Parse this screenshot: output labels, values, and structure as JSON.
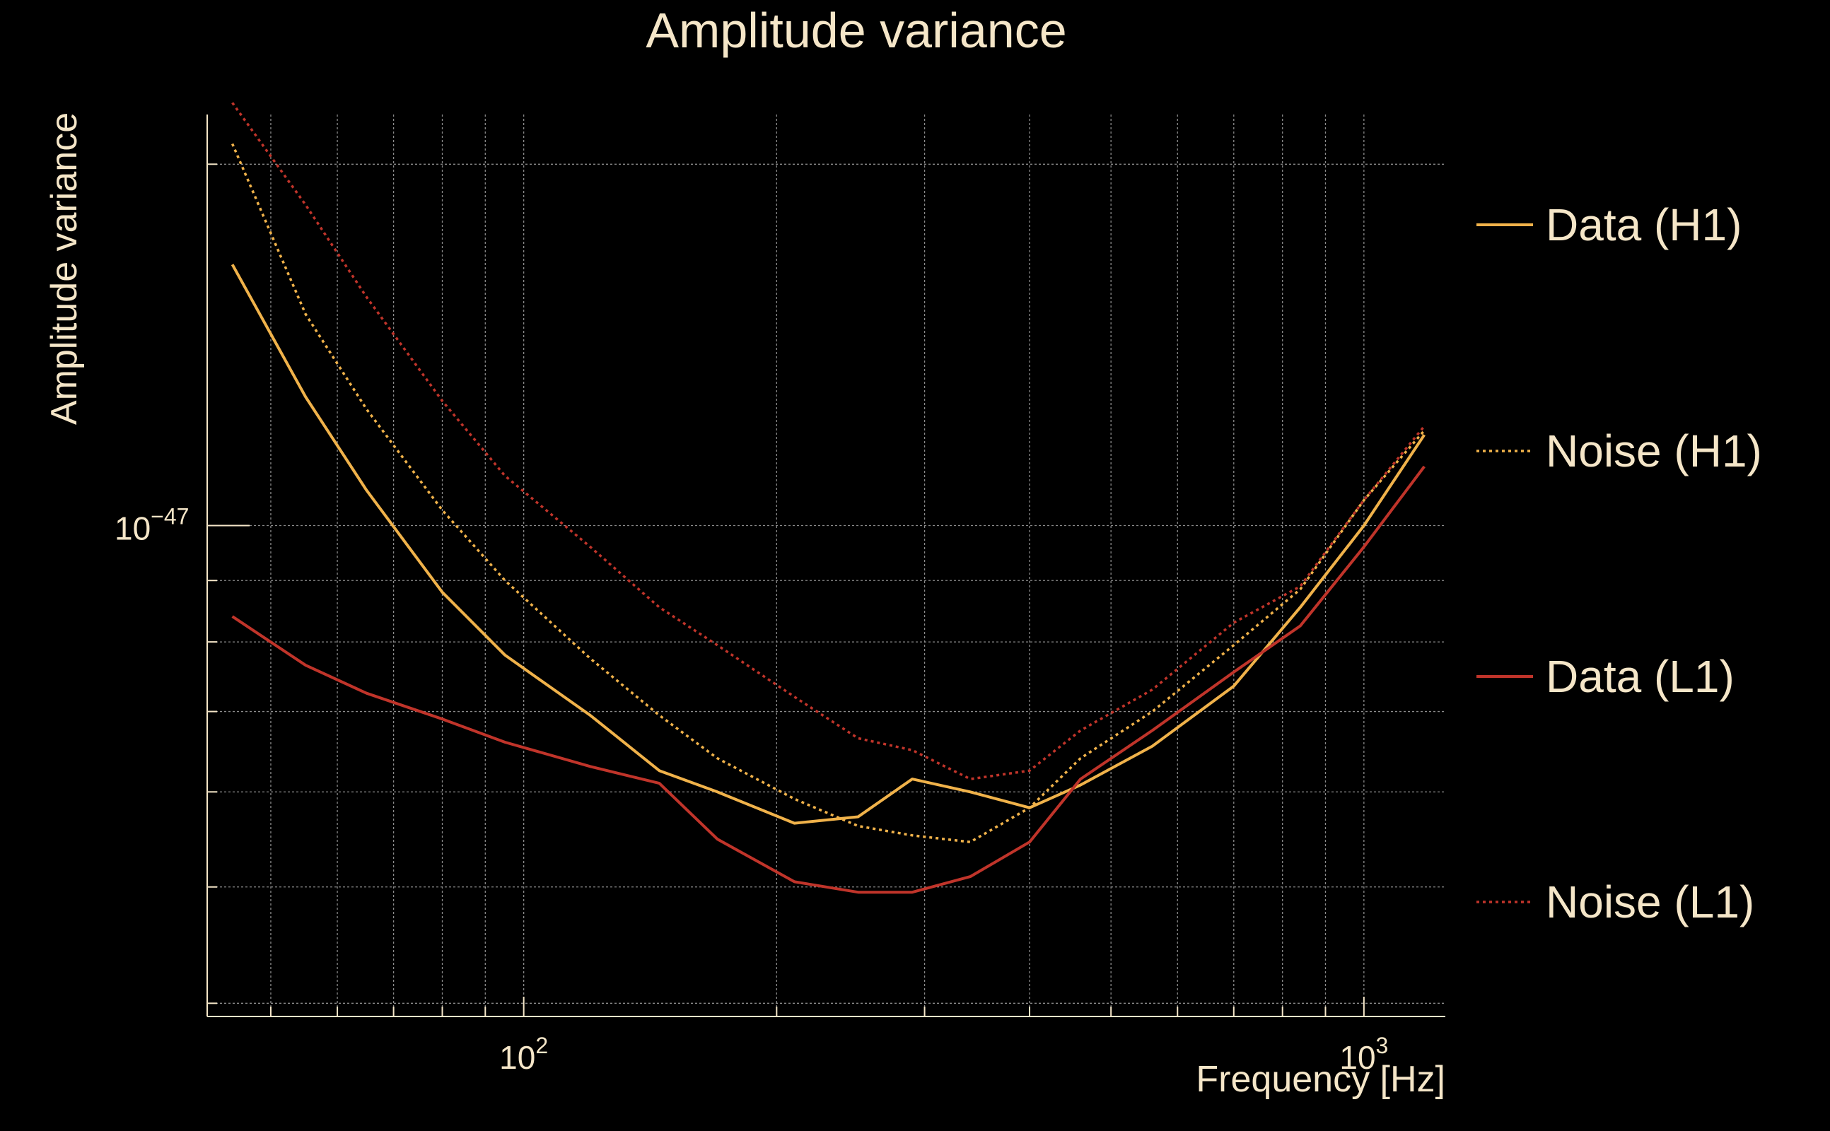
{
  "chart_data": {
    "type": "line",
    "title": "Amplitude variance",
    "xlabel": "Frequency [Hz]",
    "ylabel": "Amplitude variance",
    "x_scale": "log",
    "y_scale": "log",
    "xlim": [
      42,
      1250
    ],
    "ylim": [
      3.9e-48,
      2.2e-47
    ],
    "x_major_ticks": [
      {
        "value": 100,
        "base": "10",
        "exp": "2"
      },
      {
        "value": 1000,
        "base": "10",
        "exp": "3"
      }
    ],
    "y_major_ticks": [
      {
        "value": 1e-47,
        "base": "10",
        "exp": "−47"
      }
    ],
    "grid": true,
    "legend_position": "right",
    "colors": {
      "background": "#000000",
      "text": "#f5e6c8",
      "grid": "#8a8a8a",
      "h1": "#f0b24a",
      "l1": "#c0342a"
    },
    "x": [
      45,
      55,
      65,
      80,
      95,
      120,
      145,
      170,
      210,
      250,
      290,
      340,
      400,
      460,
      560,
      700,
      840,
      1000,
      1180
    ],
    "series": [
      {
        "name": "Data (H1)",
        "style": "solid",
        "color": "#f0b24a",
        "values": [
          1.65e-47,
          1.28e-47,
          1.07e-47,
          8.8e-48,
          7.8e-48,
          6.95e-48,
          6.25e-48,
          6e-48,
          5.65e-48,
          5.72e-48,
          6.15e-48,
          6e-48,
          5.82e-48,
          6.08e-48,
          6.55e-48,
          7.35e-48,
          8.55e-48,
          1e-47,
          1.19e-47
        ]
      },
      {
        "name": "Noise (H1)",
        "style": "dotted",
        "color": "#f0b24a",
        "values": [
          2.08e-47,
          1.5e-47,
          1.25e-47,
          1.03e-47,
          9e-48,
          7.75e-48,
          6.95e-48,
          6.4e-48,
          5.92e-48,
          5.62e-48,
          5.52e-48,
          5.45e-48,
          5.82e-48,
          6.4e-48,
          7e-48,
          7.95e-48,
          8.85e-48,
          1.05e-47,
          1.2e-47
        ]
      },
      {
        "name": "Data (L1)",
        "style": "solid",
        "color": "#c0342a",
        "values": [
          8.4e-48,
          7.65e-48,
          7.25e-48,
          6.9e-48,
          6.6e-48,
          6.3e-48,
          6.1e-48,
          5.48e-48,
          5.05e-48,
          4.95e-48,
          4.95e-48,
          5.1e-48,
          5.45e-48,
          6.15e-48,
          6.75e-48,
          7.55e-48,
          8.25e-48,
          9.6e-48,
          1.12e-47
        ]
      },
      {
        "name": "Noise (L1)",
        "style": "dotted",
        "color": "#c0342a",
        "values": [
          2.25e-47,
          1.85e-47,
          1.55e-47,
          1.27e-47,
          1.1e-47,
          9.6e-48,
          8.55e-48,
          7.95e-48,
          7.2e-48,
          6.65e-48,
          6.5e-48,
          6.15e-48,
          6.25e-48,
          6.75e-48,
          7.3e-48,
          8.3e-48,
          8.9e-48,
          1.05e-47,
          1.21e-47
        ]
      }
    ]
  }
}
